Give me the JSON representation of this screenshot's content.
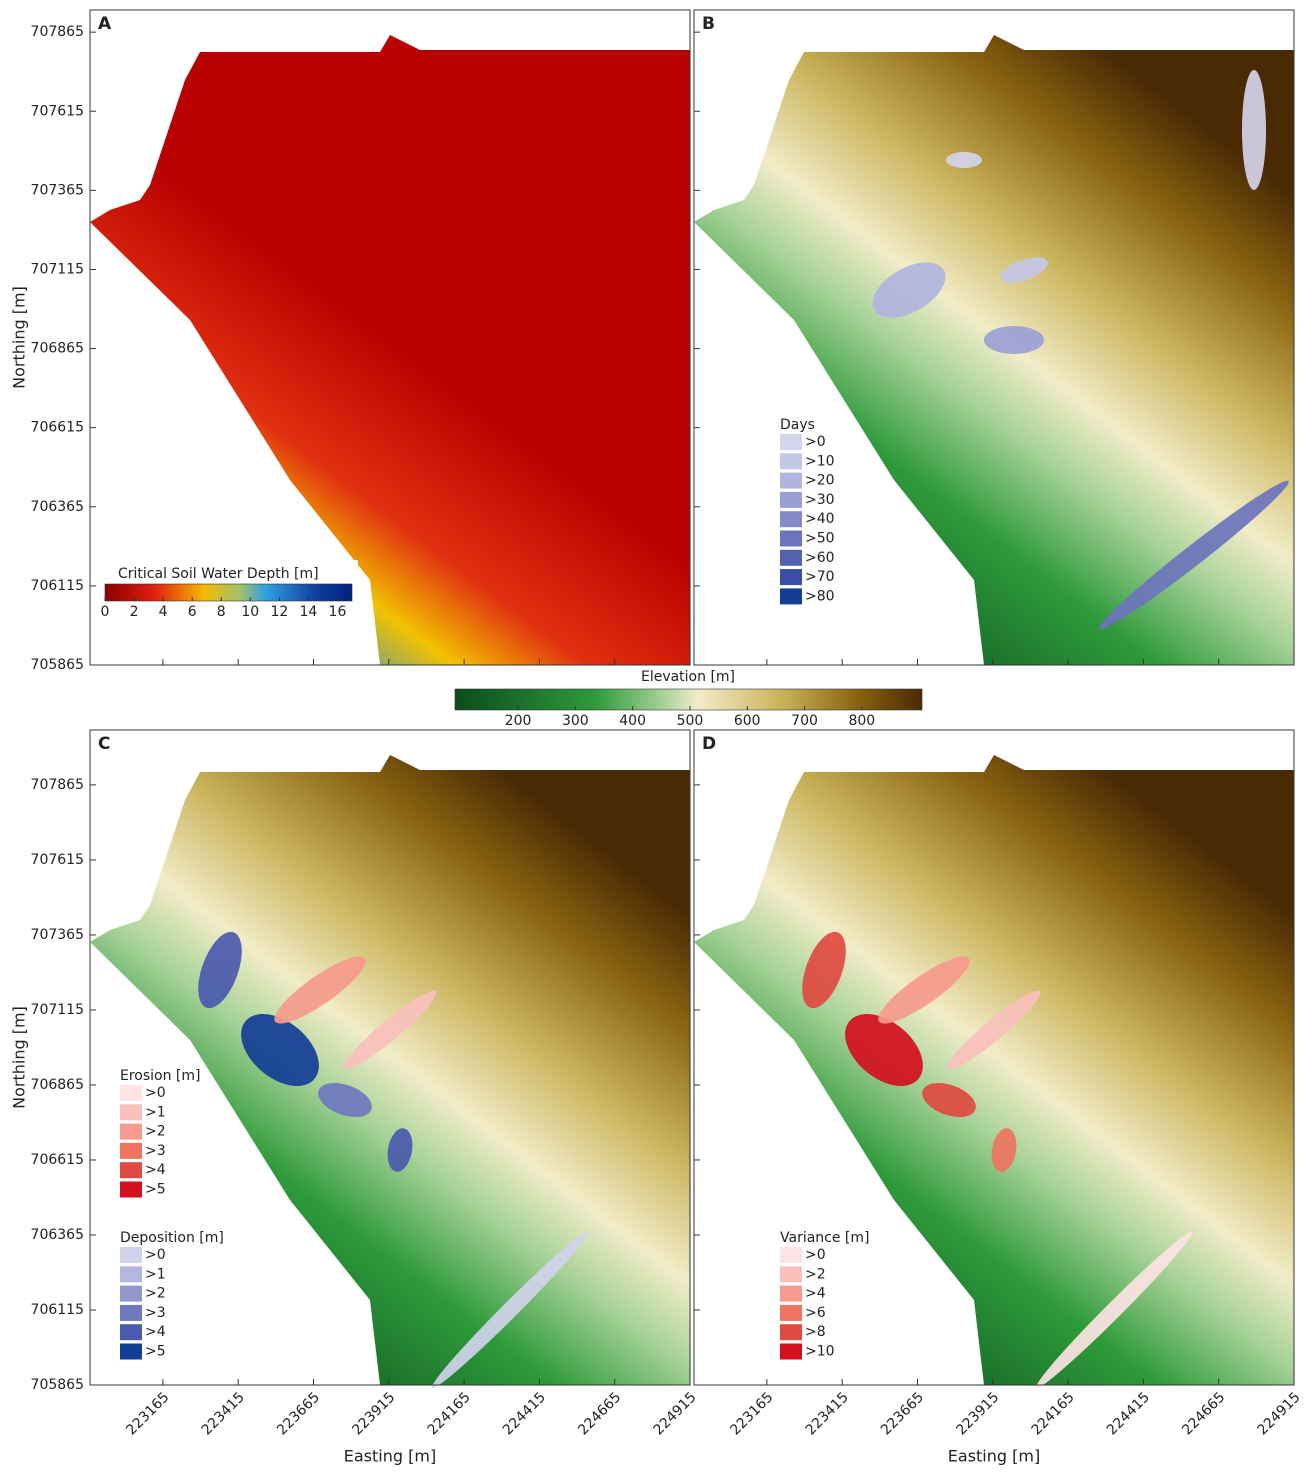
{
  "panels": [
    {
      "label": "A",
      "northing_lim": [
        705865,
        707935
      ]
    },
    {
      "label": "B",
      "northing_lim": [
        705865,
        707935
      ]
    },
    {
      "label": "C",
      "northing_lim": [
        705865,
        708048
      ]
    },
    {
      "label": "D",
      "northing_lim": [
        705865,
        708048
      ]
    }
  ],
  "northing_label": "Northing [m]",
  "easting_label": "Easting [m]",
  "northing_ticks": [
    707865,
    707615,
    707365,
    707115,
    706865,
    706615,
    706365,
    706115,
    705865
  ],
  "easting_lim": [
    222923,
    224915
  ],
  "easting_ticks": [
    223165,
    223415,
    223665,
    223915,
    224165,
    224415,
    224665,
    224915
  ],
  "soil_water_colorbar": {
    "title": "Critical Soil Water Depth [m]",
    "lim": [
      0,
      17
    ],
    "ticks": [
      0,
      2,
      4,
      6,
      8,
      10,
      12,
      14,
      16
    ]
  },
  "elevation_colorbar": {
    "title": "Elevation [m]",
    "lim": [
      90,
      905
    ],
    "ticks": [
      200,
      300,
      400,
      500,
      600,
      700,
      800
    ]
  },
  "days_legend": {
    "title": "Days",
    "items": [
      {
        "label": ">0",
        "color": "#d4d4ec"
      },
      {
        "label": ">10",
        "color": "#c4c6e6"
      },
      {
        "label": ">20",
        "color": "#b0b4de"
      },
      {
        "label": ">30",
        "color": "#9aa0d4"
      },
      {
        "label": ">40",
        "color": "#848ac8"
      },
      {
        "label": ">50",
        "color": "#6c74bc"
      },
      {
        "label": ">60",
        "color": "#5460b0"
      },
      {
        "label": ">70",
        "color": "#3c4ea6"
      },
      {
        "label": ">80",
        "color": "#123e96"
      }
    ]
  },
  "erosion_legend": {
    "title": "Erosion [m]",
    "items": [
      {
        "label": ">0",
        "color": "#fde3e3"
      },
      {
        "label": ">1",
        "color": "#f9c0bc"
      },
      {
        "label": ">2",
        "color": "#f59a8c"
      },
      {
        "label": ">3",
        "color": "#ee7460"
      },
      {
        "label": ">4",
        "color": "#e04a40"
      },
      {
        "label": ">5",
        "color": "#d40f1e"
      }
    ]
  },
  "deposition_legend": {
    "title": "Deposition [m]",
    "items": [
      {
        "label": ">0",
        "color": "#d0d2ea"
      },
      {
        "label": ">1",
        "color": "#b4b8de"
      },
      {
        "label": ">2",
        "color": "#9298cc"
      },
      {
        "label": ">3",
        "color": "#6e78bc"
      },
      {
        "label": ">4",
        "color": "#4a5aac"
      },
      {
        "label": ">5",
        "color": "#123e96"
      }
    ]
  },
  "variance_legend": {
    "title": "Variance [m]",
    "items": [
      {
        "label": ">0",
        "color": "#fde3e3"
      },
      {
        "label": ">2",
        "color": "#f9c0bc"
      },
      {
        "label": ">4",
        "color": "#f59a8c"
      },
      {
        "label": ">6",
        "color": "#ee7460"
      },
      {
        "label": ">8",
        "color": "#e04a40"
      },
      {
        "label": ">10",
        "color": "#d40f1e"
      }
    ]
  }
}
